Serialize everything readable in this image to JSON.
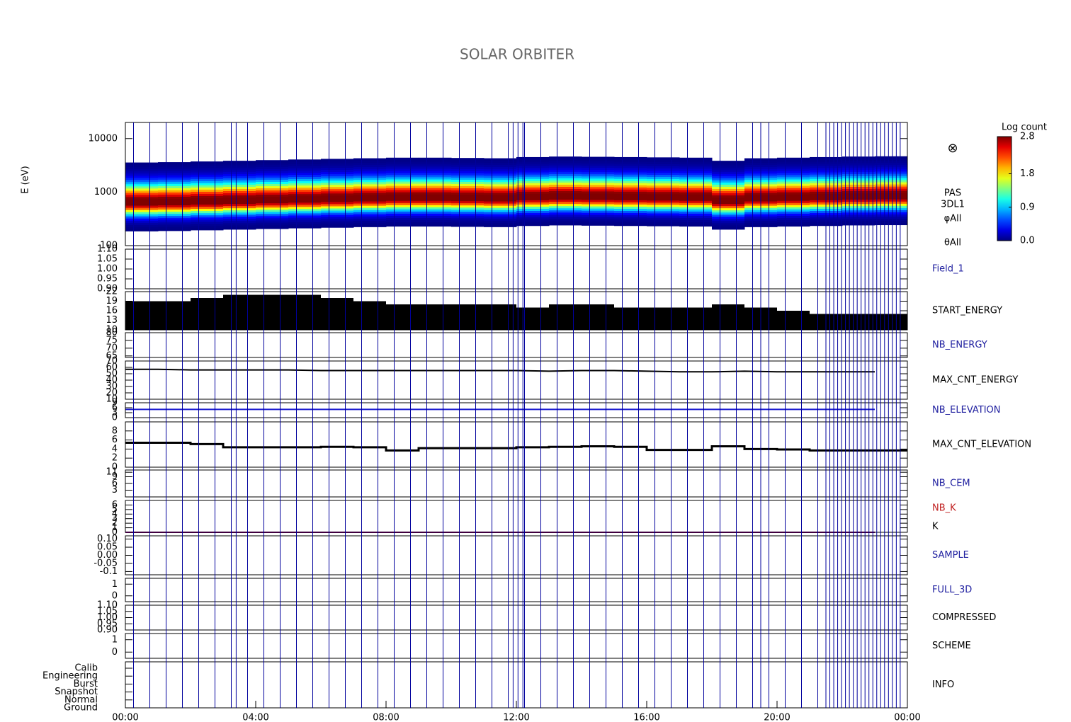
{
  "chart_data": {
    "type": "panels",
    "title": "SOLAR ORBITER",
    "xlim": [
      0,
      24
    ],
    "xticks": [
      {
        "value": 0,
        "label": "00:00"
      },
      {
        "value": 4,
        "label": "04:00"
      },
      {
        "value": 8,
        "label": "08:00"
      },
      {
        "value": 12,
        "label": "12:00"
      },
      {
        "value": 16,
        "label": "16:00"
      },
      {
        "value": 20,
        "label": "20:00"
      },
      {
        "value": 24,
        "label": "00:00"
      }
    ],
    "colorbar": {
      "label": "Log count",
      "lim": [
        0,
        2.8
      ],
      "ticks": [
        {
          "value": 0,
          "label": "0.0"
        },
        0.9,
        1.8,
        2.8
      ]
    },
    "panels": [
      {
        "type": "heatmap",
        "ylabel": "E (eV)",
        "log": true,
        "ylim": [
          100,
          20000
        ],
        "yticks": [
          100,
          1000,
          10000
        ],
        "side_labels": [
          "⊗",
          "PAS",
          "3DL1",
          "φAll",
          "θAll"
        ],
        "x": [
          0,
          1,
          2,
          3,
          4,
          5,
          6,
          7,
          8,
          9,
          10,
          11,
          12,
          13,
          14,
          15,
          16,
          17,
          18,
          19,
          20,
          21,
          22,
          23
        ],
        "values": [
          650,
          660,
          680,
          700,
          720,
          740,
          760,
          780,
          800,
          800,
          790,
          780,
          820,
          840,
          830,
          820,
          810,
          800,
          700,
          780,
          800,
          820,
          840,
          850
        ]
      },
      {
        "type": "empty",
        "label": "Field_1",
        "label_color": "#2020a0",
        "ylim": [
          0.9,
          1.1
        ],
        "yticks": [
          {
            "value": 0.9,
            "label": "0.90"
          },
          0.95,
          {
            "value": 1,
            "label": "1.00"
          },
          1.05,
          {
            "value": 1.1,
            "label": "1.10"
          }
        ]
      },
      {
        "type": "bars",
        "label": "START_ENERGY",
        "label_color": "#000000",
        "color": "#000000",
        "ylim": [
          10,
          22
        ],
        "yticks": [
          10,
          13,
          16,
          19,
          22
        ],
        "x": [
          0,
          1,
          2,
          3,
          4,
          5,
          6,
          7,
          8,
          9,
          10,
          11,
          12,
          13,
          14,
          15,
          16,
          17,
          18,
          19,
          20,
          21,
          22,
          23
        ],
        "values": [
          19,
          19,
          20,
          21,
          21,
          21,
          20,
          19,
          18,
          18,
          18,
          18,
          17,
          18,
          18,
          17,
          17,
          17,
          18,
          17,
          16,
          15,
          15,
          15
        ]
      },
      {
        "type": "empty",
        "label": "NB_ENERGY",
        "label_color": "#2020a0",
        "ylim": [
          64,
          80
        ],
        "yticks": [
          65,
          70,
          75,
          80
        ]
      },
      {
        "type": "line",
        "label": "MAX_CNT_ENERGY",
        "label_color": "#000000",
        "color": "#000000",
        "ylim": [
          10,
          70
        ],
        "yticks": [
          10,
          20,
          30,
          40,
          50,
          60,
          70
        ],
        "x": [
          0,
          1,
          2,
          3,
          4,
          5,
          6,
          7,
          8,
          9,
          10,
          11,
          12,
          13,
          14,
          15,
          16,
          17,
          18,
          19,
          20,
          21,
          22,
          23
        ],
        "values": [
          57,
          57,
          56,
          56,
          56,
          56,
          55,
          55,
          55,
          55,
          55,
          55,
          55,
          54,
          55,
          55,
          54,
          53,
          53,
          54,
          53,
          53,
          53,
          53
        ]
      },
      {
        "type": "line",
        "label": "NB_ELEVATION",
        "label_color": "#2020a0",
        "color": "#1c1cd0",
        "ylim": [
          0,
          9
        ],
        "yticks": [
          0,
          3,
          6,
          9
        ],
        "x": [
          0,
          1,
          2,
          3,
          4,
          5,
          6,
          7,
          8,
          9,
          10,
          11,
          12,
          13,
          14,
          15,
          16,
          17,
          18,
          19,
          20,
          21,
          22,
          23
        ],
        "values": [
          5,
          5,
          5,
          5,
          5,
          5,
          5,
          5,
          5,
          5,
          5,
          5,
          5,
          5,
          5,
          5,
          5,
          5,
          5,
          5,
          5,
          5,
          5,
          5
        ]
      },
      {
        "type": "steps",
        "label": "MAX_CNT_ELEVATION",
        "label_color": "#000000",
        "color": "#000000",
        "ylim": [
          0,
          10
        ],
        "yticks": [
          0,
          2,
          4,
          6,
          8
        ],
        "x": [
          0,
          1,
          2,
          3,
          4,
          5,
          6,
          7,
          8,
          9,
          10,
          11,
          12,
          13,
          14,
          15,
          16,
          17,
          18,
          19,
          20,
          21,
          22,
          23
        ],
        "values": [
          5.4,
          5.4,
          5.1,
          4.4,
          4.4,
          4.4,
          4.5,
          4.4,
          3.7,
          4.2,
          4.2,
          4.2,
          4.4,
          4.5,
          4.6,
          4.5,
          3.8,
          3.8,
          4.6,
          4.0,
          3.9,
          3.7,
          3.7,
          3.7
        ]
      },
      {
        "type": "empty",
        "label": "NB_CEM",
        "label_color": "#2020a0",
        "ylim": [
          0,
          12
        ],
        "yticks": [
          3,
          6,
          9,
          11
        ]
      },
      {
        "type": "line",
        "label": "NB_K",
        "label_color": "#c02020",
        "secondary_label": "K",
        "color": "#800080",
        "ylim": [
          0,
          7
        ],
        "yticks": [
          0,
          1,
          2,
          3,
          4,
          5,
          6
        ],
        "x": [
          0,
          1,
          2,
          3,
          4,
          5,
          6,
          7,
          8,
          9,
          10,
          11,
          12,
          13,
          14,
          15,
          16,
          17,
          18,
          19,
          20,
          21,
          22,
          23
        ],
        "values": [
          0,
          0,
          0,
          0,
          0,
          0,
          0,
          0,
          0,
          0,
          0,
          0,
          0,
          0,
          0,
          0,
          0,
          0,
          0,
          0,
          0,
          0,
          0,
          0
        ]
      },
      {
        "type": "empty",
        "label": "SAMPLE",
        "label_color": "#2020a0",
        "ylim": [
          -0.12,
          0.12
        ],
        "yticks": [
          -0.1,
          -0.05,
          {
            "value": 0,
            "label": "0.00"
          },
          0.05,
          {
            "value": 0.1,
            "label": "0.10"
          }
        ]
      },
      {
        "type": "empty",
        "label": "FULL_3D",
        "label_color": "#2020a0",
        "ylim": [
          -0.5,
          1.5
        ],
        "yticks": [
          0,
          1
        ]
      },
      {
        "type": "empty",
        "label": "COMPRESSED",
        "label_color": "#000000",
        "ylim": [
          0.9,
          1.1
        ],
        "yticks": [
          {
            "value": 0.9,
            "label": "0.90"
          },
          0.95,
          {
            "value": 1,
            "label": "1.00"
          },
          1.05,
          {
            "value": 1.1,
            "label": "1.10"
          }
        ]
      },
      {
        "type": "empty",
        "label": "SCHEME",
        "label_color": "#000000",
        "ylim": [
          -0.5,
          1.5
        ],
        "yticks": [
          0,
          1
        ]
      },
      {
        "type": "empty",
        "label": "INFO",
        "label_color": "#000000",
        "categories": [
          "Calib",
          "Engineering",
          "Burst",
          "Snapshot",
          "Normal",
          "Ground"
        ]
      }
    ]
  }
}
